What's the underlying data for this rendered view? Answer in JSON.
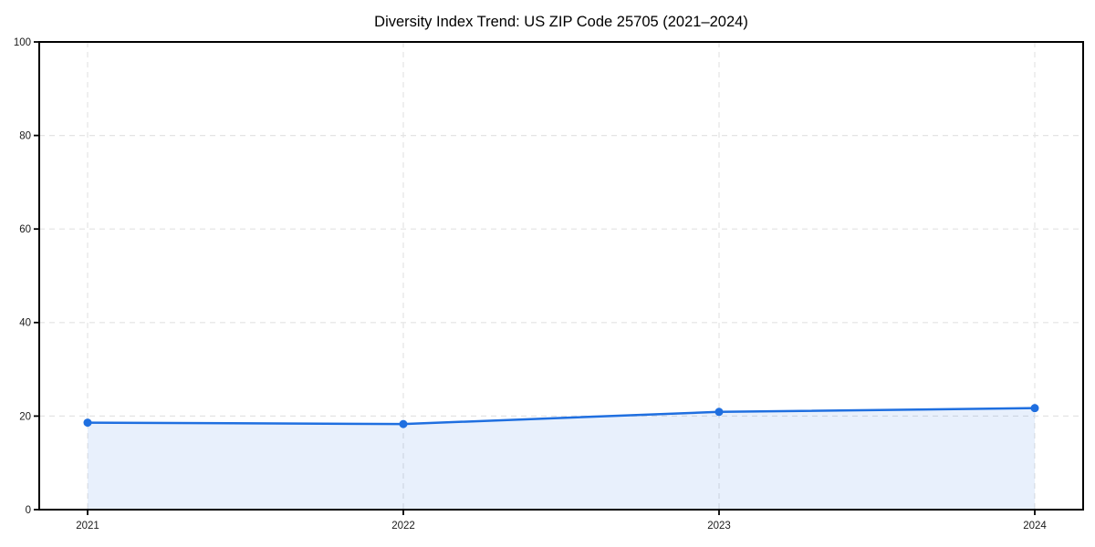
{
  "chart_data": {
    "type": "line",
    "title": "Diversity Index Trend: US ZIP Code 25705 (2021–2024)",
    "categories": [
      "2021",
      "2022",
      "2023",
      "2024"
    ],
    "values": [
      18.6,
      18.3,
      20.9,
      21.7
    ],
    "series_name": "Diversity Index",
    "xlabel": "",
    "ylabel": "",
    "ylim": [
      0,
      100
    ],
    "yticks": [
      0,
      20,
      40,
      60,
      80,
      100
    ],
    "grid": true,
    "grid_style": "dashed",
    "legend_position": "none",
    "markers": true,
    "area": true,
    "colors": {
      "line": "#1f6fe0",
      "marker": "#1f6fe0",
      "area_fill": "rgba(31,111,224,0.10)",
      "grid": "#e4e4e4",
      "axis": "#000000",
      "tick_text": "#1a1a1a",
      "background": "#ffffff"
    }
  }
}
